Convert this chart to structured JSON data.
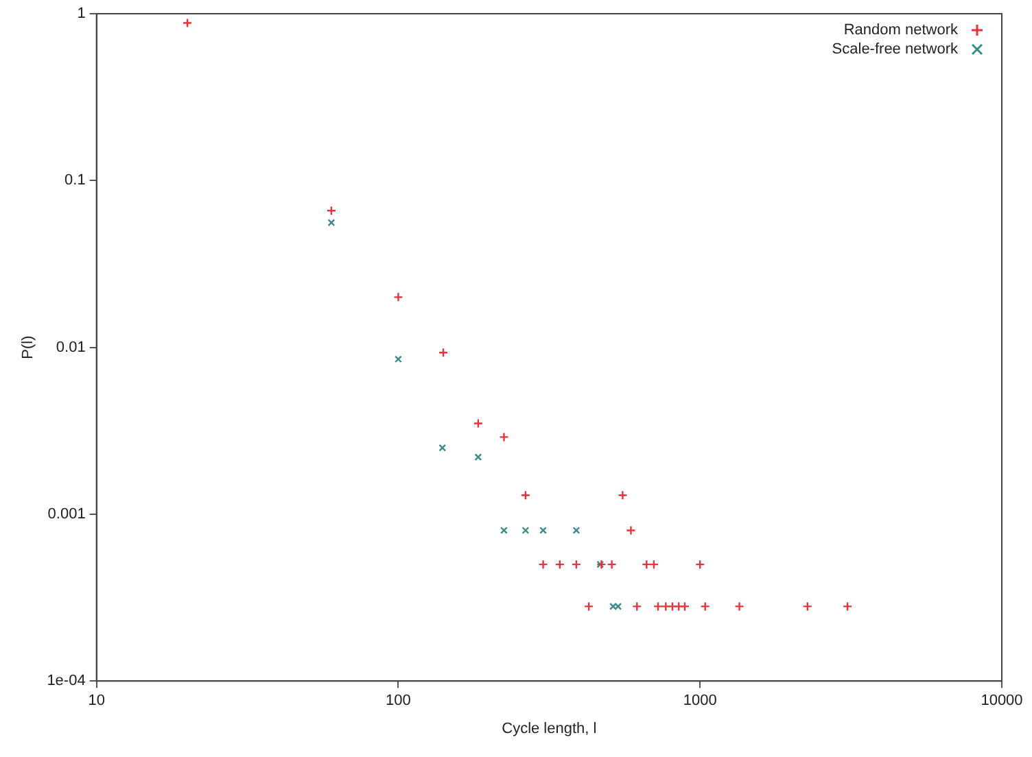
{
  "chart_data": {
    "type": "scatter",
    "xlabel": "Cycle length, l",
    "ylabel": "P(l)",
    "log": "xy",
    "grid": false,
    "legend": "top right",
    "xlim": [
      10,
      10000
    ],
    "xticks": [
      10,
      100,
      1000,
      10000
    ],
    "ylim": [
      0.0001,
      1
    ],
    "yticks": [
      {
        "value": 0.0001,
        "label": "1e-04"
      },
      0.001,
      0.01,
      0.1,
      1
    ],
    "series": [
      {
        "name": "Random network",
        "color": "#e8323c",
        "marker": "plus",
        "x": [
          20,
          60,
          100,
          141,
          184,
          224,
          264,
          554,
          590,
          302,
          343,
          389,
          471,
          510,
          665,
          703,
          1000,
          428,
          618,
          726,
          770,
          810,
          850,
          890,
          1040,
          1350,
          2270,
          3080
        ],
        "values": [
          0.88,
          0.066,
          0.02,
          0.0093,
          0.0035,
          0.0029,
          0.0013,
          0.0013,
          0.0008,
          0.0005,
          0.0005,
          0.0005,
          0.0005,
          0.0005,
          0.0005,
          0.0005,
          0.0005,
          0.00028,
          0.00028,
          0.00028,
          0.00028,
          0.00028,
          0.00028,
          0.00028,
          0.00028,
          0.00028,
          0.00028,
          0.00028
        ]
      },
      {
        "name": "Scale-free network",
        "color": "#3a8a8a",
        "marker": "cross",
        "x": [
          60,
          100,
          140,
          184,
          224,
          264,
          302,
          389,
          467,
          515,
          535
        ],
        "values": [
          0.056,
          0.0085,
          0.0025,
          0.0022,
          0.0008,
          0.0008,
          0.0008,
          0.0008,
          0.0005,
          0.00028,
          0.00028
        ]
      }
    ]
  }
}
